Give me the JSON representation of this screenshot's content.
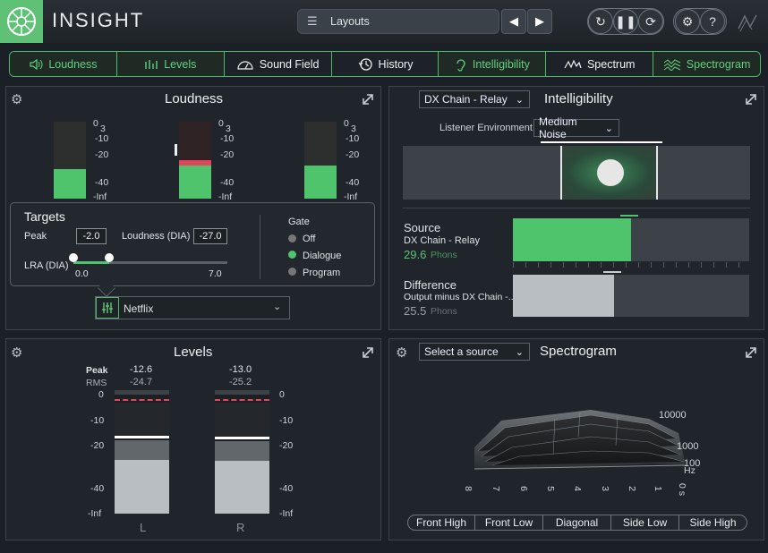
{
  "app": {
    "name": "INSIGHT"
  },
  "toolbar": {
    "layouts_label": "Layouts"
  },
  "tabs": [
    {
      "label": "Loudness",
      "icon": "speaker-icon",
      "active": true
    },
    {
      "label": "Levels",
      "icon": "level-bars-icon",
      "active": true
    },
    {
      "label": "Sound Field",
      "icon": "sound-field-icon",
      "active": false
    },
    {
      "label": "History",
      "icon": "history-icon",
      "active": false
    },
    {
      "label": "Intelligibility",
      "icon": "ear-icon",
      "active": true
    },
    {
      "label": "Spectrum",
      "icon": "spectrum-icon",
      "active": false
    },
    {
      "label": "Spectrogram",
      "icon": "spectrogram-icon",
      "active": true
    }
  ],
  "loudness": {
    "title": "Loudness",
    "scale": [
      "0",
      "3",
      "-10",
      "-20",
      "-40",
      "-Inf"
    ],
    "meters": [
      0.38,
      0.48,
      0.38
    ],
    "targets": {
      "title": "Targets",
      "peak_label": "Peak",
      "peak_value": "-2.0",
      "loudness_label": "Loudness (DIA)",
      "loudness_value": "-27.0",
      "lra_label": "LRA (DIA)",
      "lra_min": "0.0",
      "lra_max": "7.0",
      "gate_label": "Gate",
      "gate_options": [
        "Off",
        "Dialogue",
        "Program"
      ],
      "gate_selected": "Dialogue"
    },
    "preset": "Netflix"
  },
  "intelligibility": {
    "dropdown": "DX Chain - Relay",
    "title": "Intelligibility",
    "env_label": "Listener Environment",
    "env_value": "Medium Noise",
    "source": {
      "heading": "Source",
      "name": "DX Chain - Relay",
      "value": "29.6",
      "unit": "Phons",
      "fill": 0.5
    },
    "difference": {
      "heading": "Difference",
      "name": "Output minus DX Chain -...",
      "value": "25.5",
      "unit": "Phons",
      "fill": 0.43
    }
  },
  "levels": {
    "title": "Levels",
    "peak_label": "Peak",
    "rms_label": "RMS",
    "left": {
      "peak": "-12.6",
      "rms": "-24.7",
      "label": "L"
    },
    "right": {
      "peak": "-13.0",
      "rms": "-25.2",
      "label": "R"
    },
    "scale": [
      "0",
      "-10",
      "-20",
      "-40",
      "-Inf"
    ]
  },
  "spectrogram": {
    "source_dropdown": "Select a source",
    "title": "Spectrogram",
    "freq_labels": [
      "10000",
      "1000",
      "100",
      "Hz"
    ],
    "time_labels": [
      "8",
      "7",
      "6",
      "5",
      "4",
      "3",
      "2",
      "1",
      "0 s"
    ],
    "views": [
      "Front High",
      "Front Low",
      "Diagonal",
      "Side Low",
      "Side High"
    ]
  },
  "colors": {
    "accent": "#5fc176",
    "meter_green": "#4fc46c",
    "peak_red": "#e0475a"
  }
}
